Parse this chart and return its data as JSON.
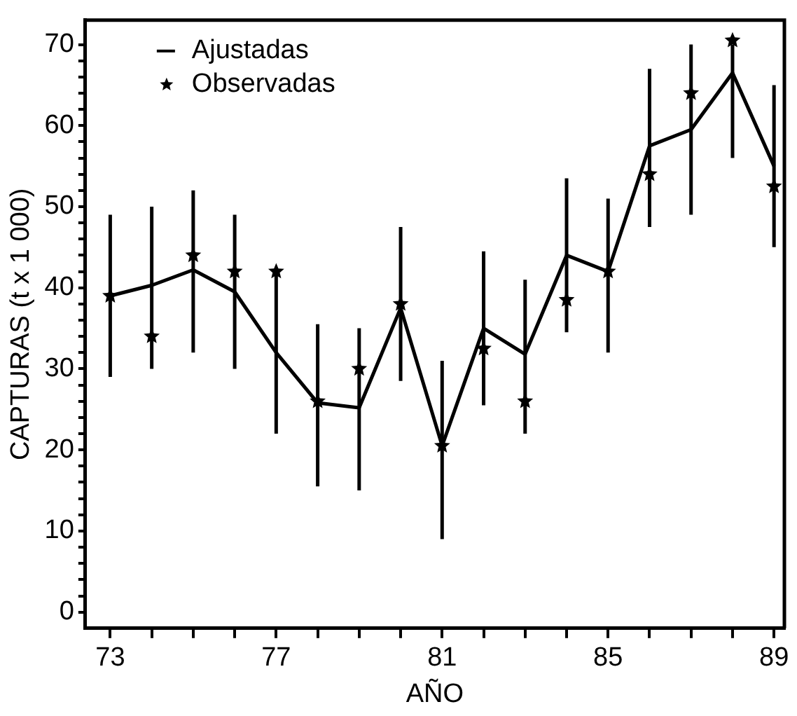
{
  "chart_data": {
    "type": "line",
    "xlabel": "AÑO",
    "ylabel": "CAPTURAS (t x 1 000)",
    "x": [
      73,
      74,
      75,
      76,
      77,
      78,
      79,
      80,
      81,
      82,
      83,
      84,
      85,
      86,
      87,
      88,
      89
    ],
    "series": [
      {
        "name": "Ajustadas",
        "type": "line",
        "color": "#000000",
        "marker": "none",
        "values": [
          39,
          40.3,
          42.2,
          39.5,
          32,
          25.8,
          25.2,
          37.5,
          20.5,
          35,
          31.8,
          44,
          42,
          57.5,
          59.5,
          66.5,
          55
        ],
        "errors": [
          [
            29,
            49
          ],
          [
            30,
            50
          ],
          [
            32,
            52
          ],
          [
            30,
            49
          ],
          [
            22,
            42
          ],
          [
            15.5,
            35.5
          ],
          [
            15,
            35
          ],
          [
            28.5,
            47.5
          ],
          [
            9,
            31
          ],
          [
            25.5,
            44.5
          ],
          [
            22,
            41
          ],
          [
            34.5,
            53.5
          ],
          [
            32,
            51
          ],
          [
            47.5,
            67
          ],
          [
            49,
            70
          ],
          [
            56,
            70
          ],
          [
            45,
            65
          ]
        ]
      },
      {
        "name": "Observadas",
        "type": "scatter",
        "color": "#000000",
        "marker": "star",
        "values": [
          39,
          34,
          44,
          42,
          42,
          26,
          30,
          38,
          20.5,
          32.5,
          26,
          38.5,
          42,
          54,
          64,
          70.5,
          52.5
        ]
      }
    ],
    "xlim": [
      72.4,
      89.25
    ],
    "xticks": [
      73,
      {
        "value": 74,
        "label": null
      },
      {
        "value": 75,
        "label": null
      },
      {
        "value": 76,
        "label": null
      },
      77,
      {
        "value": 78,
        "label": null
      },
      {
        "value": 79,
        "label": null
      },
      {
        "value": 80,
        "label": null
      },
      81,
      {
        "value": 82,
        "label": null
      },
      {
        "value": 83,
        "label": null
      },
      {
        "value": 84,
        "label": null
      },
      85,
      {
        "value": 86,
        "label": null
      },
      {
        "value": 87,
        "label": null
      },
      {
        "value": 88,
        "label": null
      },
      89
    ],
    "ylim": [
      -2,
      73
    ],
    "yticks": [
      0,
      {
        "value": 2,
        "label": null
      },
      {
        "value": 4,
        "label": null
      },
      {
        "value": 6,
        "label": null
      },
      {
        "value": 8,
        "label": null
      },
      10,
      {
        "value": 12,
        "label": null
      },
      {
        "value": 14,
        "label": null
      },
      {
        "value": 16,
        "label": null
      },
      {
        "value": 18,
        "label": null
      },
      20,
      {
        "value": 22,
        "label": null
      },
      {
        "value": 24,
        "label": null
      },
      {
        "value": 26,
        "label": null
      },
      {
        "value": 28,
        "label": null
      },
      30,
      {
        "value": 32,
        "label": null
      },
      {
        "value": 34,
        "label": null
      },
      {
        "value": 36,
        "label": null
      },
      {
        "value": 38,
        "label": null
      },
      40,
      {
        "value": 42,
        "label": null
      },
      {
        "value": 44,
        "label": null
      },
      {
        "value": 46,
        "label": null
      },
      {
        "value": 48,
        "label": null
      },
      50,
      {
        "value": 52,
        "label": null
      },
      {
        "value": 54,
        "label": null
      },
      {
        "value": 56,
        "label": null
      },
      {
        "value": 58,
        "label": null
      },
      60,
      {
        "value": 62,
        "label": null
      },
      {
        "value": 64,
        "label": null
      },
      {
        "value": 66,
        "label": null
      },
      {
        "value": 68,
        "label": null
      },
      70
    ],
    "grid": false,
    "legend": "top left"
  }
}
